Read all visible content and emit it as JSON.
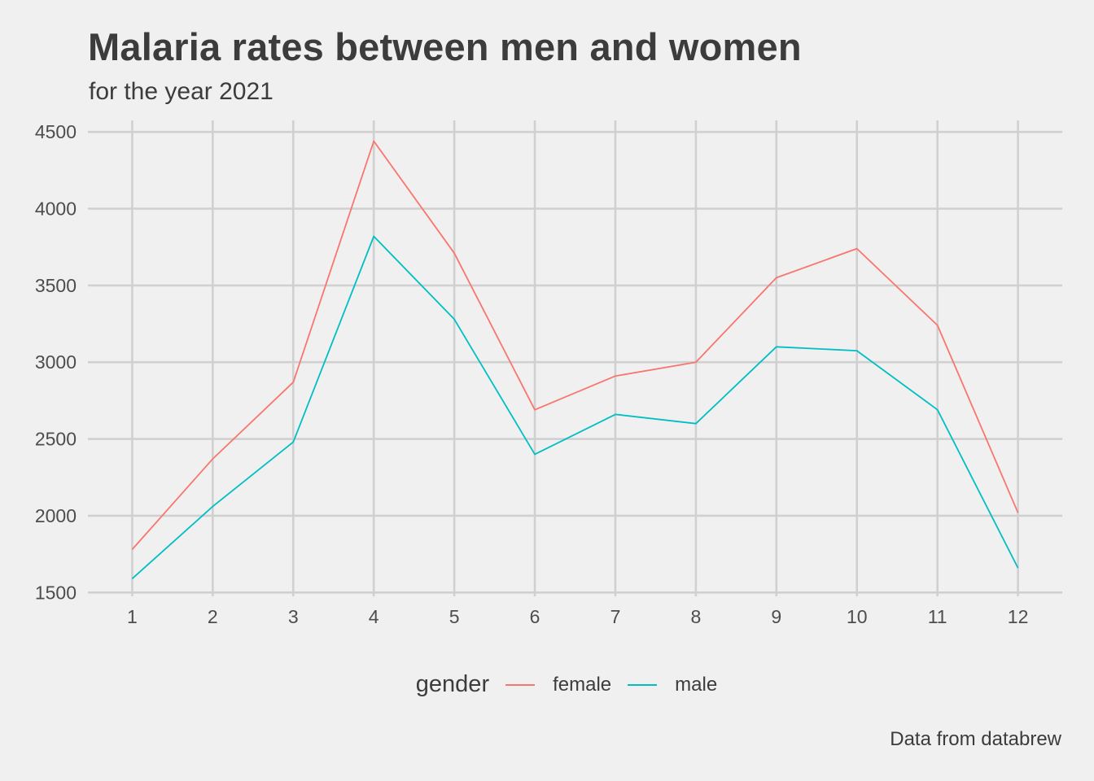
{
  "chart_data": {
    "type": "line",
    "title": "Malaria rates between men and women",
    "subtitle": "for the year 2021",
    "caption": "Data from databrew",
    "xlabel": "",
    "ylabel": "",
    "x": [
      1,
      2,
      3,
      4,
      5,
      6,
      7,
      8,
      9,
      10,
      11,
      12
    ],
    "x_ticks": [
      "1",
      "2",
      "3",
      "4",
      "5",
      "6",
      "7",
      "8",
      "9",
      "10",
      "11",
      "12"
    ],
    "xlim": [
      0.45,
      12.55
    ],
    "y_ticks": [
      1500,
      2000,
      2500,
      3000,
      3500,
      4000,
      4500
    ],
    "ylim": [
      1475,
      4575
    ],
    "grid": true,
    "legend": {
      "title": "gender",
      "position": "bottom"
    },
    "series": [
      {
        "name": "female",
        "color": "#f8766d",
        "values": [
          1780,
          2370,
          2870,
          4440,
          3710,
          2690,
          2910,
          3000,
          3550,
          3740,
          3240,
          2020
        ]
      },
      {
        "name": "male",
        "color": "#00bfc4",
        "values": [
          1590,
          2060,
          2480,
          3820,
          3280,
          2400,
          2660,
          2600,
          3100,
          3075,
          2690,
          1660
        ]
      }
    ]
  }
}
